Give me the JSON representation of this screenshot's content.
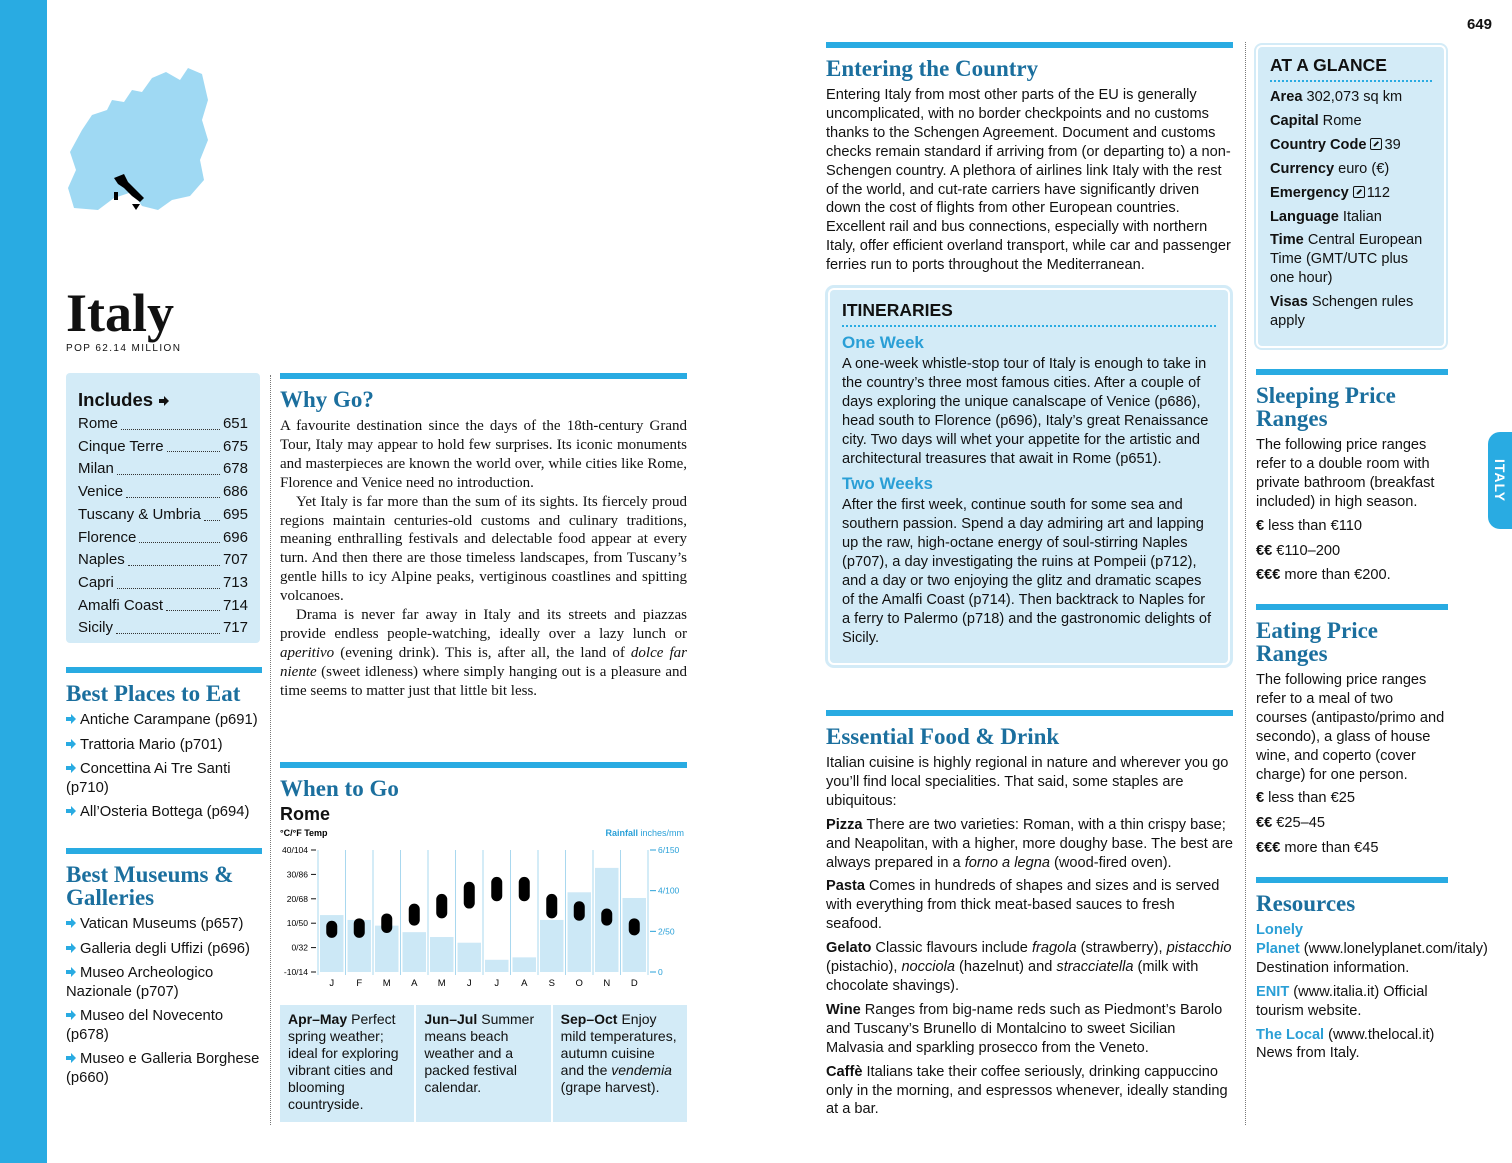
{
  "page_number": "649",
  "side_tab": "ITALY",
  "country": {
    "name": "Italy",
    "population": "POP 62.14 MILLION"
  },
  "includes": {
    "title": "Includes",
    "items": [
      {
        "name": "Rome",
        "page": "651"
      },
      {
        "name": "Cinque Terre",
        "page": "675"
      },
      {
        "name": "Milan",
        "page": "678"
      },
      {
        "name": "Venice",
        "page": "686"
      },
      {
        "name": "Tuscany & Umbria",
        "page": "695"
      },
      {
        "name": "Florence",
        "page": "696"
      },
      {
        "name": "Naples",
        "page": "707"
      },
      {
        "name": "Capri",
        "page": "713"
      },
      {
        "name": "Amalfi Coast",
        "page": "714"
      },
      {
        "name": "Sicily",
        "page": "717"
      }
    ]
  },
  "best_eat": {
    "title": "Best Places to Eat",
    "items": [
      "Antiche Carampane (p691)",
      "Trattoria Mario (p701)",
      "Concettina Ai Tre Santi (p710)",
      "All’Osteria Bottega (p694)"
    ]
  },
  "best_museums": {
    "title": "Best Museums & Galleries",
    "items": [
      "Vatican Museums (p657)",
      "Galleria degli Uffizi (p696)",
      "Museo Archeologico Nazionale (p707)",
      "Museo del Novecento (p678)",
      "Museo e Galleria Borghese (p660)"
    ]
  },
  "why_go": {
    "title": "Why Go?",
    "paragraphs": [
      "A favourite destination since the days of the 18th-century Grand Tour, Italy may appear to hold few surprises. Its iconic monuments and masterpieces are known the world over, while cities like Rome, Florence and Venice need no introduction.",
      "Yet Italy is far more than the sum of its sights. Its fiercely proud regions maintain centuries-old customs and culinary traditions, meaning enthralling festivals and delectable food appear at every turn. And then there are those timeless landscapes, from Tuscany’s gentle hills to icy Alpine peaks, vertiginous coastlines and spitting volcanoes.",
      [
        "Drama is never far away in Italy and its streets and piazzas provide endless people-watching, ideally over a lazy lunch or ",
        "aperitivo",
        " (evening drink). This is, after all, the land of ",
        "dolce far niente",
        " (sweet idleness) where simply hanging out is a pleasure and time seems to matter just that little bit less."
      ]
    ]
  },
  "when_to_go": {
    "title": "When to Go",
    "seasons": [
      {
        "period": "Apr–May",
        "text": "Perfect spring weather; ideal for exploring vibrant cities and blooming countryside."
      },
      {
        "period": "Jun–Jul",
        "text": "Summer means beach weather and a packed festival calendar."
      },
      {
        "period": "Sep–Oct",
        "text": [
          "Enjoy mild temperatures, autumn cuisine and the ",
          "vendemia",
          " (grape harvest)."
        ]
      }
    ]
  },
  "chart_data": {
    "type": "bar",
    "title": "Rome",
    "ylabel": "°C/°F Temp",
    "y2label": "Rainfall",
    "y2unit": "inches/mm",
    "categories": [
      "J",
      "F",
      "M",
      "A",
      "M",
      "J",
      "J",
      "A",
      "S",
      "O",
      "N",
      "D"
    ],
    "rainfall": [
      70,
      64,
      57,
      49,
      43,
      36,
      15,
      18,
      64,
      98,
      128,
      91
    ],
    "temp_low": [
      4,
      4,
      6,
      9,
      12,
      16,
      19,
      19,
      12,
      11,
      9,
      5
    ],
    "temp_high": [
      11,
      12,
      14,
      18,
      22,
      27,
      29,
      29,
      22,
      19,
      16,
      12
    ],
    "bar_color": "#cce8f6",
    "temp_color": "#000000",
    "ylim": [
      -10,
      40
    ],
    "yticks": [
      {
        "value": 40,
        "label": "40/104"
      },
      {
        "value": 30,
        "label": "30/86"
      },
      {
        "value": 20,
        "label": "20/68"
      },
      {
        "value": 10,
        "label": "10/50"
      },
      {
        "value": 0,
        "label": "0/32"
      },
      {
        "value": -10,
        "label": "-10/14"
      }
    ],
    "y2lim": [
      0,
      150
    ],
    "y2ticks": [
      {
        "value": 150,
        "label": "6/150"
      },
      {
        "value": 100,
        "label": "4/100"
      },
      {
        "value": 50,
        "label": "2/50"
      },
      0
    ]
  },
  "entering": {
    "title": "Entering the Country",
    "text": "Entering Italy from most other parts of the EU is generally uncomplicated, with no border checkpoints and no customs thanks to the Schengen Agreement. Document and customs checks remain standard if arriving from (or departing to) a non-Schengen country. A plethora of airlines link Italy with the rest of the world, and cut-rate carriers have significantly driven down the cost of flights from other European countries. Excellent rail and bus connections, especially with northern Italy, offer efficient overland transport, while car and passenger ferries run to ports throughout the Mediterranean."
  },
  "itineraries": {
    "title": "ITINERARIES",
    "items": [
      {
        "title": "One Week",
        "text": "A one-week whistle-stop tour of Italy is enough to take in the country’s three most famous cities. After a couple of days exploring the unique canalscape of Venice (p686), head south to Florence (p696), Italy’s great Renaissance city. Two days will whet your appetite for the artistic and architectural treasures that await in Rome (p651)."
      },
      {
        "title": "Two Weeks",
        "text": "After the first week, continue south for some sea and southern passion. Spend a day admiring art and lapping up the raw, high-octane energy of soul-stirring Naples (p707), a day investigating the ruins at Pompeii (p712), and a day or two enjoying the glitz and dramatic scapes of the Amalfi Coast (p714). Then backtrack to Naples for a ferry to Palermo (p718) and the gastronomic delights of Sicily."
      }
    ]
  },
  "food": {
    "title": "Essential Food & Drink",
    "intro": "Italian cuisine is highly regional in nature and wherever you go you’ll find local specialities. That said, some staples are ubiquitous:",
    "items": [
      {
        "term": "Pizza",
        "text": [
          "There are two varieties: Roman, with a thin crispy base; and Neapolitan, with a higher, more doughy base. The best are always prepared in a ",
          "forno a legna",
          " (wood-fired oven)."
        ]
      },
      {
        "term": "Pasta",
        "text": "Comes in hundreds of shapes and sizes and is served with everything from thick meat-based sauces to fresh seafood."
      },
      {
        "term": "Gelato",
        "text": [
          "Classic flavours include ",
          "fragola",
          " (strawberry), ",
          "pistacchio",
          " (pistachio), ",
          "nocciola",
          " (hazelnut) and ",
          "stracciatella",
          " (milk with chocolate shavings)."
        ]
      },
      {
        "term": "Wine",
        "text": "Ranges from big-name reds such as Piedmont’s Barolo and Tuscany’s Brunello di Montalcino to sweet Sicilian Malvasia and sparkling prosecco from the Veneto."
      },
      {
        "term": "Caffè",
        "text": "Italians take their coffee seriously, drinking cappuccino only in the morning, and espressos whenever, ideally standing at a bar."
      }
    ]
  },
  "glance": {
    "title": "AT A GLANCE",
    "items": [
      {
        "term": "Area",
        "text": "302,073 sq km"
      },
      {
        "term": "Capital",
        "text": "Rome"
      },
      {
        "term": "Country Code",
        "text": "39",
        "icon": "phone"
      },
      {
        "term": "Currency",
        "text": "euro (€)"
      },
      {
        "term": "Emergency",
        "text": "112",
        "icon": "phone"
      },
      {
        "term": "Language",
        "text": "Italian"
      },
      {
        "term": "Time",
        "text": "Central European Time (GMT/UTC plus one hour)"
      },
      {
        "term": "Visas",
        "text": "Schengen rules apply"
      }
    ]
  },
  "sleeping": {
    "title": "Sleeping Price Ranges",
    "intro": "The following price ranges refer to a double room with private bathroom (breakfast included) in high season.",
    "items": [
      {
        "symbol": "€",
        "text": "less than €110"
      },
      {
        "symbol": "€€",
        "text": "€110–200"
      },
      {
        "symbol": "€€€",
        "text": "more than €200."
      }
    ]
  },
  "eating": {
    "title": "Eating Price Ranges",
    "intro": "The following price ranges refer to a meal of two courses (antipasto/primo and secondo), a glass of house wine, and coperto (cover charge) for one person.",
    "items": [
      {
        "symbol": "€",
        "text": "less than €25"
      },
      {
        "symbol": "€€",
        "text": "€25–45"
      },
      {
        "symbol": "€€€",
        "text": "more than €45"
      }
    ]
  },
  "resources": {
    "title": "Resources",
    "items": [
      {
        "name": "Lonely Planet",
        "text": "(www.lonelyplanet.com/italy) Destination information."
      },
      {
        "name": "ENIT",
        "text": "(www.italia.it) Official tourism website."
      },
      {
        "name": "The Local",
        "text": "(www.thelocal.it) News from Italy."
      }
    ]
  }
}
